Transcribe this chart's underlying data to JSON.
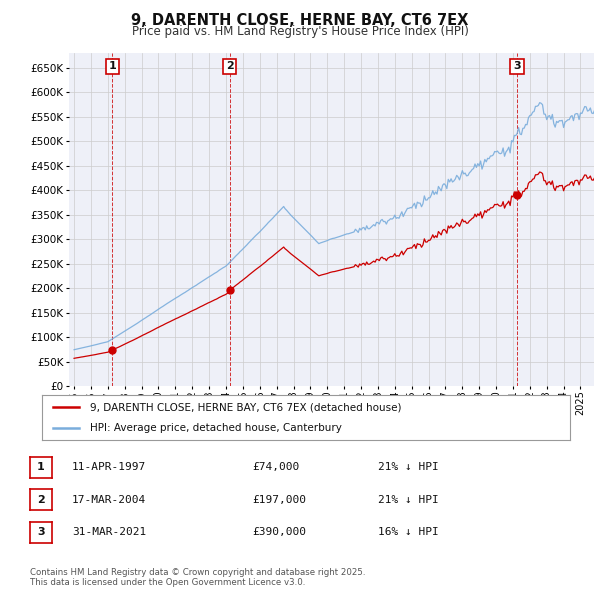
{
  "title": "9, DARENTH CLOSE, HERNE BAY, CT6 7EX",
  "subtitle": "Price paid vs. HM Land Registry's House Price Index (HPI)",
  "ylim": [
    0,
    680000
  ],
  "yticks": [
    0,
    50000,
    100000,
    150000,
    200000,
    250000,
    300000,
    350000,
    400000,
    450000,
    500000,
    550000,
    600000,
    650000
  ],
  "xlim_start": 1994.7,
  "xlim_end": 2025.8,
  "sale_color": "#cc0000",
  "hpi_color": "#7aaddc",
  "vline_color": "#cc0000",
  "grid_color": "#cccccc",
  "background_color": "#ffffff",
  "plot_bg_color": "#eef0f8",
  "sales": [
    {
      "year": 1997.27,
      "price": 74000,
      "label": "1"
    },
    {
      "year": 2004.21,
      "price": 197000,
      "label": "2"
    },
    {
      "year": 2021.24,
      "price": 390000,
      "label": "3"
    }
  ],
  "legend_entries": [
    "9, DARENTH CLOSE, HERNE BAY, CT6 7EX (detached house)",
    "HPI: Average price, detached house, Canterbury"
  ],
  "table_entries": [
    {
      "label": "1",
      "date": "11-APR-1997",
      "price": "£74,000",
      "hpi": "21% ↓ HPI"
    },
    {
      "label": "2",
      "date": "17-MAR-2004",
      "price": "£197,000",
      "hpi": "21% ↓ HPI"
    },
    {
      "label": "3",
      "date": "31-MAR-2021",
      "price": "£390,000",
      "hpi": "16% ↓ HPI"
    }
  ],
  "footer": "Contains HM Land Registry data © Crown copyright and database right 2025.\nThis data is licensed under the Open Government Licence v3.0."
}
